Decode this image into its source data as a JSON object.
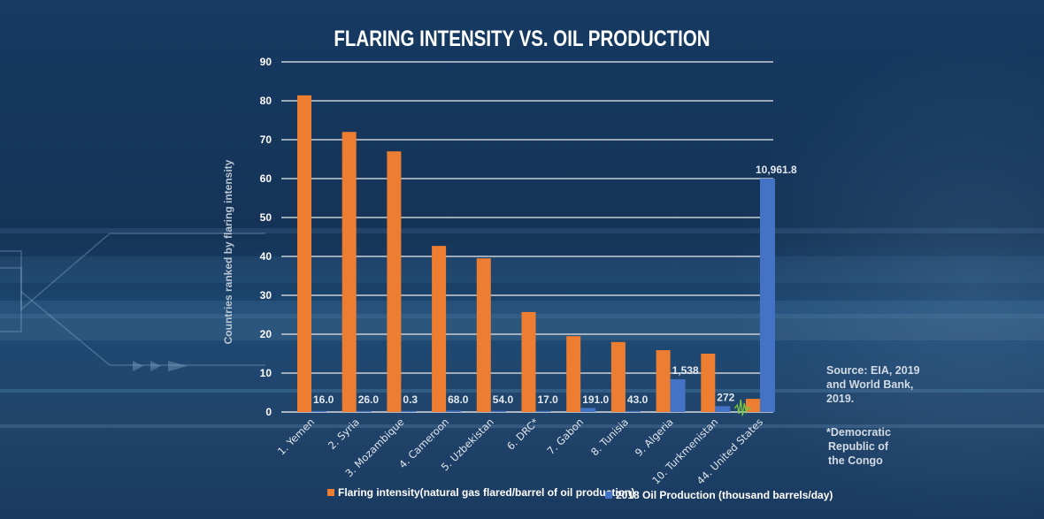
{
  "chart_data": {
    "type": "bar",
    "title": "FLARING INTENSITY VS. OIL PRODUCTION",
    "xlabel": "",
    "ylabel": "Countries ranked by flaring intensity",
    "ylim": [
      0,
      90
    ],
    "yticks": [
      0,
      10,
      20,
      30,
      40,
      50,
      60,
      70,
      80,
      90
    ],
    "grid": true,
    "legend_position": "bottom",
    "categories": [
      "1. Yemen",
      "2. Syria",
      "3. Mozambique",
      "4. Cameroon",
      "5. Uzbekistan",
      "6. DRC*",
      "7. Gabon",
      "8. Tunisia",
      "9. Algeria",
      "10. Turkmenistan",
      "44. United States"
    ],
    "series": [
      {
        "name": "Flaring intensity(natural gas flared/barrel of oil production)",
        "color": "#ed7d31",
        "values": [
          81.4,
          72.0,
          67.0,
          42.7,
          39.5,
          25.7,
          19.5,
          18.0,
          15.9,
          15.0,
          3.4
        ]
      },
      {
        "name": "2018 Oil Production (thousand barrels/day)",
        "color": "#4472c4",
        "values": [
          16.0,
          26.0,
          0.3,
          68.0,
          54.0,
          17.0,
          191.0,
          43.0,
          1538,
          272,
          10961.8
        ],
        "data_labels": [
          "16.0",
          "26.0",
          "0.3",
          "68.0",
          "54.0",
          "17.0",
          "191.0",
          "43.0",
          "1,538",
          "272",
          "10,961.8"
        ],
        "display_scale_note": "plotted on the same axis scaled so 10,961.8 reaches 60"
      }
    ]
  },
  "legend": {
    "flaring_label": "Flaring intensity(natural gas flared/barrel of oil production)",
    "production_label": "2018 Oil Production (thousand barrels/day)"
  },
  "notes": {
    "source_line1": "Source: EIA, 2019",
    "source_line2": "and World Bank,",
    "source_line3": "2019.",
    "footnote_line1": "*Democratic",
    "footnote_line2": "Republic of",
    "footnote_line3": "the Congo"
  },
  "colors": {
    "flaring": "#ed7d31",
    "production": "#4472c4",
    "axis_break": "#7ac943"
  }
}
